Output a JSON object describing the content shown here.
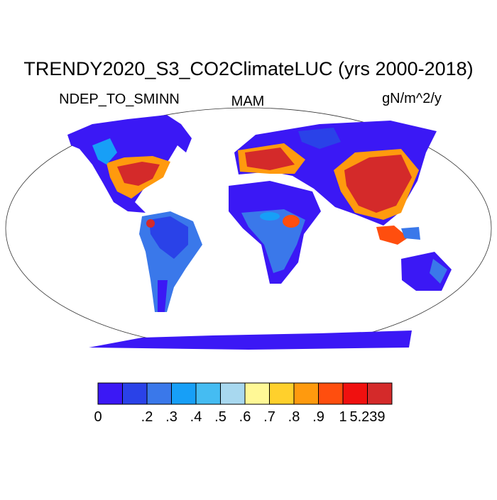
{
  "title": "TRENDY2020_S3_CO2ClimateLUC (yrs 2000-2018)",
  "left_label": "NDEP_TO_SMINN",
  "center_label": "MAM",
  "right_label": "gN/m^2/y",
  "colorbar": {
    "colors": [
      "#3b18f5",
      "#2a42e8",
      "#3a78ea",
      "#179ff7",
      "#45bcf2",
      "#a8d8ef",
      "#fff896",
      "#ffd02c",
      "#ff9a0e",
      "#ff4e0e",
      "#f0100f",
      "#d42a2a"
    ],
    "levels": [
      0,
      null,
      {
        "value": 0.2,
        "label": ".2"
      },
      {
        "value": 0.3,
        "label": ".3"
      },
      {
        "value": 0.4,
        "label": ".4"
      },
      {
        "value": 0.5,
        "label": ".5"
      },
      {
        "value": 0.6,
        "label": ".6"
      },
      {
        "value": 0.7,
        "label": ".7"
      },
      {
        "value": 0.8,
        "label": ".8"
      },
      {
        "value": 0.9,
        "label": ".9"
      },
      1,
      5.239
    ]
  }
}
